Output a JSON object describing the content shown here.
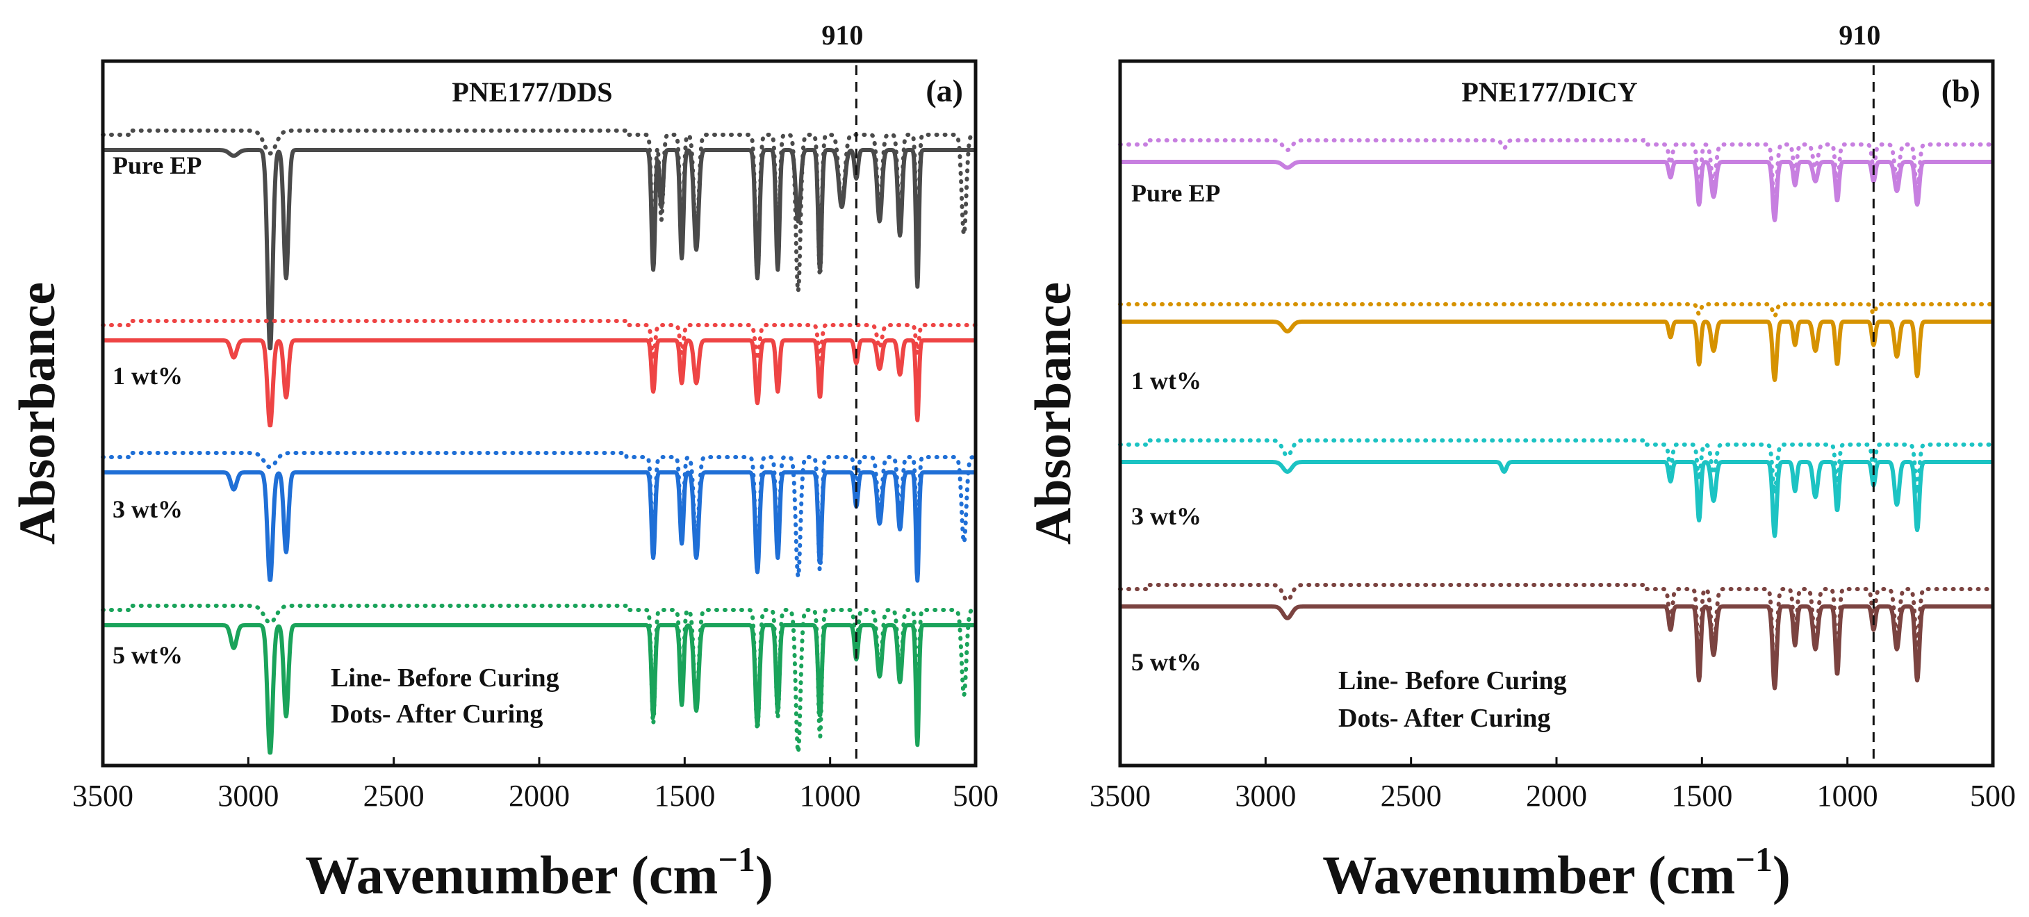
{
  "chart_data": [
    {
      "type": "line",
      "panel_label": "(a)",
      "title": "PNE177/DDS",
      "xlabel": "Wavenumber (cm",
      "xlabel_sup": "−1",
      "xlabel_close": ")",
      "ylabel": "Absorbance",
      "xlim": [
        3500,
        500
      ],
      "x_ticks": [
        "3500",
        "3000",
        "2500",
        "2000",
        "1500",
        "1000",
        "500"
      ],
      "reference_line": {
        "x": 910,
        "label": "910"
      },
      "legend": [
        "Line- Before Curing",
        "Dots- After Curing"
      ],
      "series": [
        {
          "name": "Pure EP",
          "label": "Pure EP",
          "color": "#4a4a4a",
          "offset": 0,
          "peaks": [
            [
              3050,
              0.02,
              15
            ],
            [
              2925,
              0.7,
              9
            ],
            [
              2870,
              0.45,
              8
            ],
            [
              1608,
              0.42,
              6
            ],
            [
              1580,
              0.2,
              6
            ],
            [
              1510,
              0.38,
              6
            ],
            [
              1460,
              0.35,
              8
            ],
            [
              1250,
              0.45,
              7
            ],
            [
              1180,
              0.42,
              6
            ],
            [
              1110,
              0.25,
              8
            ],
            [
              1035,
              0.42,
              6
            ],
            [
              960,
              0.2,
              10
            ],
            [
              910,
              0.1,
              6
            ],
            [
              830,
              0.25,
              8
            ],
            [
              760,
              0.3,
              7
            ],
            [
              700,
              0.48,
              5
            ]
          ],
          "after_peaks": [
            [
              2925,
              0.08,
              20
            ],
            [
              1608,
              0.42,
              6
            ],
            [
              1580,
              0.3,
              6
            ],
            [
              1510,
              0.4,
              6
            ],
            [
              1460,
              0.38,
              8
            ],
            [
              1250,
              0.5,
              7
            ],
            [
              1180,
              0.45,
              6
            ],
            [
              1110,
              0.55,
              8
            ],
            [
              1035,
              0.5,
              6
            ],
            [
              960,
              0.25,
              10
            ],
            [
              830,
              0.28,
              8
            ],
            [
              760,
              0.32,
              7
            ],
            [
              700,
              0.45,
              5
            ],
            [
              540,
              0.35,
              8
            ]
          ]
        },
        {
          "name": "1 wt%",
          "label": "1 wt%",
          "color": "#ee4444",
          "offset": 1,
          "peaks": [
            [
              3050,
              0.06,
              10
            ],
            [
              2925,
              0.3,
              9
            ],
            [
              2870,
              0.2,
              8
            ],
            [
              1608,
              0.18,
              6
            ],
            [
              1510,
              0.15,
              6
            ],
            [
              1460,
              0.15,
              8
            ],
            [
              1250,
              0.22,
              7
            ],
            [
              1180,
              0.18,
              6
            ],
            [
              1035,
              0.2,
              6
            ],
            [
              910,
              0.08,
              6
            ],
            [
              830,
              0.1,
              8
            ],
            [
              760,
              0.12,
              7
            ],
            [
              700,
              0.28,
              5
            ]
          ],
          "after_peaks": [
            [
              1608,
              0.12,
              6
            ],
            [
              1510,
              0.1,
              6
            ],
            [
              1250,
              0.12,
              7
            ],
            [
              1035,
              0.12,
              6
            ],
            [
              830,
              0.08,
              8
            ],
            [
              700,
              0.1,
              5
            ]
          ]
        },
        {
          "name": "3 wt%",
          "label": "3 wt%",
          "color": "#1f6fd6",
          "offset": 2,
          "peaks": [
            [
              3050,
              0.06,
              10
            ],
            [
              2925,
              0.38,
              9
            ],
            [
              2870,
              0.28,
              8
            ],
            [
              1608,
              0.3,
              6
            ],
            [
              1510,
              0.25,
              6
            ],
            [
              1460,
              0.3,
              8
            ],
            [
              1250,
              0.35,
              7
            ],
            [
              1180,
              0.3,
              6
            ],
            [
              1035,
              0.32,
              6
            ],
            [
              910,
              0.12,
              6
            ],
            [
              830,
              0.18,
              8
            ],
            [
              760,
              0.2,
              7
            ],
            [
              700,
              0.38,
              5
            ]
          ],
          "after_peaks": [
            [
              2925,
              0.05,
              20
            ],
            [
              1608,
              0.35,
              6
            ],
            [
              1510,
              0.3,
              6
            ],
            [
              1460,
              0.32,
              8
            ],
            [
              1250,
              0.4,
              7
            ],
            [
              1180,
              0.35,
              6
            ],
            [
              1110,
              0.42,
              8
            ],
            [
              1035,
              0.4,
              6
            ],
            [
              910,
              0.1,
              6
            ],
            [
              830,
              0.2,
              8
            ],
            [
              760,
              0.22,
              7
            ],
            [
              700,
              0.32,
              5
            ],
            [
              540,
              0.3,
              8
            ]
          ]
        },
        {
          "name": "5 wt%",
          "label": "5 wt%",
          "color": "#1aa35a",
          "offset": 3,
          "peaks": [
            [
              3050,
              0.08,
              10
            ],
            [
              2925,
              0.45,
              9
            ],
            [
              2870,
              0.32,
              8
            ],
            [
              1608,
              0.32,
              6
            ],
            [
              1510,
              0.28,
              6
            ],
            [
              1460,
              0.3,
              8
            ],
            [
              1250,
              0.35,
              7
            ],
            [
              1180,
              0.3,
              6
            ],
            [
              1035,
              0.32,
              6
            ],
            [
              910,
              0.12,
              6
            ],
            [
              830,
              0.18,
              8
            ],
            [
              760,
              0.2,
              7
            ],
            [
              700,
              0.42,
              5
            ]
          ],
          "after_peaks": [
            [
              2925,
              0.06,
              20
            ],
            [
              1608,
              0.4,
              6
            ],
            [
              1510,
              0.32,
              6
            ],
            [
              1460,
              0.35,
              8
            ],
            [
              1250,
              0.42,
              7
            ],
            [
              1180,
              0.38,
              6
            ],
            [
              1110,
              0.5,
              8
            ],
            [
              1035,
              0.45,
              6
            ],
            [
              910,
              0.12,
              6
            ],
            [
              830,
              0.22,
              8
            ],
            [
              760,
              0.25,
              7
            ],
            [
              700,
              0.35,
              5
            ],
            [
              540,
              0.3,
              8
            ]
          ]
        }
      ]
    },
    {
      "type": "line",
      "panel_label": "(b)",
      "title": "PNE177/DICY",
      "xlabel": "Wavenumber (cm",
      "xlabel_sup": "−1",
      "xlabel_close": ")",
      "ylabel": "Absorbance",
      "xlim": [
        3500,
        500
      ],
      "x_ticks": [
        "3500",
        "3000",
        "2500",
        "2000",
        "1500",
        "1000",
        "500"
      ],
      "reference_line": {
        "x": 910,
        "label": "910"
      },
      "legend": [
        "Line- Before Curing",
        "Dots- After Curing"
      ],
      "series": [
        {
          "name": "Pure EP",
          "label": "Pure EP",
          "color": "#c77fe0",
          "offset": 0,
          "peaks": [
            [
              2925,
              0.03,
              15
            ],
            [
              1608,
              0.08,
              6
            ],
            [
              1510,
              0.22,
              6
            ],
            [
              1460,
              0.18,
              8
            ],
            [
              1250,
              0.3,
              7
            ],
            [
              1180,
              0.12,
              6
            ],
            [
              1110,
              0.1,
              8
            ],
            [
              1035,
              0.2,
              6
            ],
            [
              910,
              0.1,
              6
            ],
            [
              830,
              0.15,
              8
            ],
            [
              760,
              0.22,
              7
            ]
          ],
          "after_peaks": [
            [
              2925,
              0.05,
              15
            ],
            [
              2180,
              0.04,
              8
            ],
            [
              1608,
              0.1,
              6
            ],
            [
              1510,
              0.25,
              6
            ],
            [
              1460,
              0.2,
              8
            ],
            [
              1250,
              0.32,
              7
            ],
            [
              1180,
              0.15,
              6
            ],
            [
              1110,
              0.12,
              8
            ],
            [
              1035,
              0.22,
              6
            ],
            [
              910,
              0.12,
              6
            ],
            [
              830,
              0.18,
              8
            ],
            [
              760,
              0.25,
              7
            ]
          ]
        },
        {
          "name": "1 wt%",
          "label": "1 wt%",
          "color": "#d69200",
          "offset": 1,
          "peaks": [
            [
              2925,
              0.05,
              15
            ],
            [
              1608,
              0.08,
              6
            ],
            [
              1510,
              0.22,
              6
            ],
            [
              1460,
              0.15,
              8
            ],
            [
              1250,
              0.3,
              7
            ],
            [
              1180,
              0.12,
              6
            ],
            [
              1110,
              0.15,
              8
            ],
            [
              1035,
              0.22,
              6
            ],
            [
              910,
              0.12,
              6
            ],
            [
              830,
              0.18,
              8
            ],
            [
              760,
              0.28,
              7
            ]
          ],
          "after_peaks": [
            [
              1510,
              0.05,
              6
            ],
            [
              1250,
              0.06,
              7
            ],
            [
              910,
              0.05,
              6
            ]
          ]
        },
        {
          "name": "3 wt%",
          "label": "3 wt%",
          "color": "#1cc3c3",
          "offset": 2,
          "peaks": [
            [
              2925,
              0.05,
              15
            ],
            [
              2180,
              0.05,
              8
            ],
            [
              1608,
              0.1,
              6
            ],
            [
              1510,
              0.3,
              6
            ],
            [
              1460,
              0.2,
              8
            ],
            [
              1250,
              0.38,
              7
            ],
            [
              1180,
              0.15,
              6
            ],
            [
              1110,
              0.18,
              8
            ],
            [
              1035,
              0.25,
              6
            ],
            [
              910,
              0.12,
              6
            ],
            [
              830,
              0.22,
              8
            ],
            [
              760,
              0.35,
              7
            ]
          ],
          "after_peaks": [
            [
              2925,
              0.08,
              15
            ],
            [
              1608,
              0.12,
              6
            ],
            [
              1510,
              0.18,
              6
            ],
            [
              1460,
              0.15,
              8
            ],
            [
              1250,
              0.25,
              7
            ],
            [
              1035,
              0.2,
              6
            ],
            [
              910,
              0.12,
              6
            ],
            [
              760,
              0.22,
              7
            ]
          ]
        },
        {
          "name": "5 wt%",
          "label": "5 wt%",
          "color": "#7b4340",
          "offset": 3,
          "peaks": [
            [
              2925,
              0.06,
              15
            ],
            [
              1608,
              0.12,
              6
            ],
            [
              1510,
              0.38,
              6
            ],
            [
              1460,
              0.25,
              8
            ],
            [
              1250,
              0.42,
              7
            ],
            [
              1180,
              0.2,
              6
            ],
            [
              1110,
              0.22,
              8
            ],
            [
              1035,
              0.35,
              6
            ],
            [
              910,
              0.12,
              6
            ],
            [
              830,
              0.22,
              8
            ],
            [
              760,
              0.38,
              7
            ]
          ],
          "after_peaks": [
            [
              2925,
              0.08,
              15
            ],
            [
              1608,
              0.18,
              6
            ],
            [
              1510,
              0.4,
              6
            ],
            [
              1460,
              0.3,
              8
            ],
            [
              1250,
              0.5,
              7
            ],
            [
              1180,
              0.25,
              6
            ],
            [
              1110,
              0.28,
              8
            ],
            [
              1035,
              0.4,
              6
            ],
            [
              910,
              0.15,
              6
            ],
            [
              830,
              0.25,
              8
            ],
            [
              760,
              0.3,
              7
            ]
          ]
        }
      ]
    }
  ]
}
